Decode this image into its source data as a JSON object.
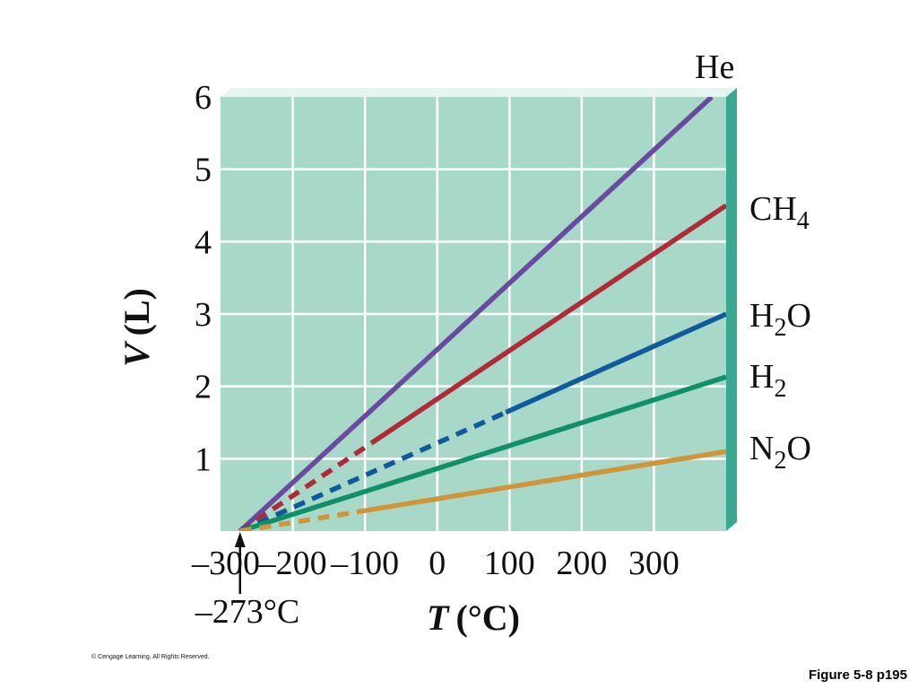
{
  "chart_data": {
    "type": "line",
    "xlabel_italic": "T",
    "xlabel_unit": "(°C)",
    "ylabel_italic": "V",
    "ylabel_unit": "(L)",
    "xlim": [
      -300,
      400
    ],
    "ylim": [
      0,
      6
    ],
    "x_ticks": [
      -300,
      -200,
      -100,
      0,
      100,
      200,
      300
    ],
    "x_tick_labels": [
      "–300",
      "–200",
      "–100",
      "0",
      "100",
      "200",
      "300"
    ],
    "y_ticks": [
      1,
      2,
      3,
      4,
      5,
      6
    ],
    "y_tick_labels": [
      "1",
      "2",
      "3",
      "4",
      "5",
      "6"
    ],
    "grid": true,
    "extrapolated_segments": "dashed",
    "series": [
      {
        "name": "He",
        "name_base": "He",
        "name_sub": "",
        "name_tail": "",
        "color": "#6a4a9e",
        "points": [
          [
            -273,
            0
          ],
          [
            380,
            6.0
          ]
        ],
        "dashed_until_x": -273
      },
      {
        "name": "CH4",
        "name_base": "CH",
        "name_sub": "4",
        "name_tail": "",
        "color": "#b02a37",
        "points": [
          [
            -273,
            0
          ],
          [
            400,
            4.5
          ]
        ],
        "dashed_until_x": -90
      },
      {
        "name": "H2O",
        "name_base": "H",
        "name_sub": "2",
        "name_tail": "O",
        "color": "#0f5a9c",
        "points": [
          [
            -273,
            0
          ],
          [
            400,
            3.0
          ]
        ],
        "dashed_until_x": 95
      },
      {
        "name": "H2",
        "name_base": "H",
        "name_sub": "2",
        "name_tail": "",
        "color": "#109068",
        "points": [
          [
            -273,
            0
          ],
          [
            400,
            2.13
          ]
        ],
        "dashed_until_x": -273
      },
      {
        "name": "N2O",
        "name_base": "N",
        "name_sub": "2",
        "name_tail": "O",
        "color": "#d0943a",
        "points": [
          [
            -273,
            0
          ],
          [
            400,
            1.1
          ]
        ],
        "dashed_until_x": -100
      }
    ],
    "annotations": [
      {
        "text": "–273°C",
        "x": -273
      }
    ]
  },
  "colors": {
    "plot_background": "#a8d8c8",
    "grid": "#ffffff",
    "side_panel": "#3aa890"
  },
  "footer": {
    "copyright": "© Cengage Learning. All Rights Reserved.",
    "caption": "Figure 5-8 p195"
  }
}
